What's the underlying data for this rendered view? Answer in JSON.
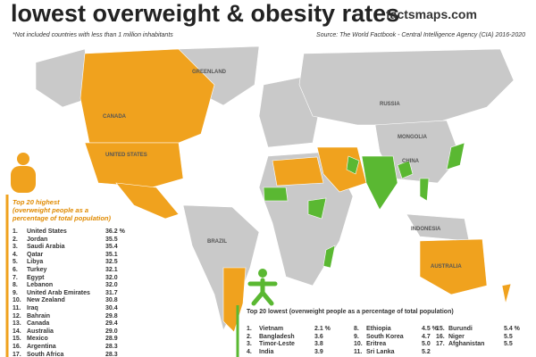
{
  "header": {
    "title": "lowest overweight & obesity rates",
    "brand": "factsmaps.com",
    "note": "*Not included countries with less than 1 million inhabitants",
    "source": "Source: The World Factbook - Central Intelligence Agency (CIA) 2016-2020"
  },
  "map_labels": [
    "GREENLAND",
    "CANADA",
    "UNITED STATES",
    "RUSSIA",
    "MONGOLIA",
    "CHINA",
    "BRAZIL",
    "INDONESIA",
    "AUSTRALIA"
  ],
  "highest": {
    "title": "Top 20 highest",
    "subtitle": "(overweight people as a percentage of total population)",
    "rows": [
      [
        "1.",
        "United States",
        "36.2 %"
      ],
      [
        "2.",
        "Jordan",
        "35.5"
      ],
      [
        "3.",
        "Saudi Arabia",
        "35.4"
      ],
      [
        "4.",
        "Qatar",
        "35.1"
      ],
      [
        "5.",
        "Libya",
        "32.5"
      ],
      [
        "6.",
        "Turkey",
        "32.1"
      ],
      [
        "7.",
        "Egypt",
        "32.0"
      ],
      [
        "8.",
        "Lebanon",
        "32.0"
      ],
      [
        "9.",
        "United Arab Emirates",
        "31.7"
      ],
      [
        "10.",
        "New Zealand",
        "30.8"
      ],
      [
        "11.",
        "Iraq",
        "30.4"
      ],
      [
        "12.",
        "Bahrain",
        "29.8"
      ],
      [
        "13.",
        "Canada",
        "29.4"
      ],
      [
        "14.",
        "Australia",
        "29.0"
      ],
      [
        "15.",
        "Mexico",
        "28.9"
      ],
      [
        "16.",
        "Argentina",
        "28.3"
      ],
      [
        "17.",
        "South Africa",
        "28.3"
      ]
    ]
  },
  "lowest": {
    "title": "Top 20 lowest (overweight people as a percentage of total population)",
    "columns": [
      [
        [
          "1.",
          "Vietnam",
          "2.1 %"
        ],
        [
          "2.",
          "Bangladesh",
          "3.6"
        ],
        [
          "3.",
          "Timor-Leste",
          "3.8"
        ],
        [
          "4.",
          "India",
          "3.9"
        ]
      ],
      [
        [
          "8.",
          "Ethiopia",
          "4.5 %"
        ],
        [
          "9.",
          "South Korea",
          "4.7"
        ],
        [
          "10.",
          "Eritrea",
          "5.0"
        ],
        [
          "11.",
          "Sri Lanka",
          "5.2"
        ]
      ],
      [
        [
          "15.",
          "Burundi",
          "5.4 %"
        ],
        [
          "16.",
          "Niger",
          "5.5"
        ],
        [
          "17.",
          "Afghanistan",
          "5.5"
        ]
      ]
    ]
  }
}
